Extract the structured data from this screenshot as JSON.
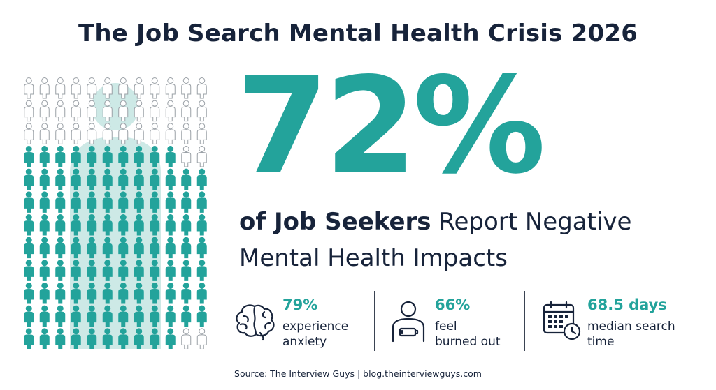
{
  "title": "The Job Search Mental Health Crisis 2026",
  "chart_data": {
    "type": "pictograph",
    "highlight_percent": 72,
    "total_icons": 144,
    "highlighted_icons": 104,
    "colors": {
      "highlight": "#23a39b",
      "base": "#ffffff",
      "outline": "#9aa0a6",
      "silhouette": "#cde9e6"
    }
  },
  "headline": {
    "percent": "72%",
    "subject": "of Job Seekers",
    "rest_line1": " Report Negative",
    "line2": "Mental Health Impacts"
  },
  "stats": [
    {
      "icon": "brain-icon",
      "value": "79%",
      "line1": "experience",
      "line2": "anxiety"
    },
    {
      "icon": "burned-out-person-icon",
      "value": "66%",
      "line1": "feel",
      "line2": "burned out"
    },
    {
      "icon": "calendar-clock-icon",
      "value": "68.5 days",
      "line1": "median search",
      "line2": "time"
    }
  ],
  "source": "Source: The Interview Guys | blog.theinterviewguys.com"
}
